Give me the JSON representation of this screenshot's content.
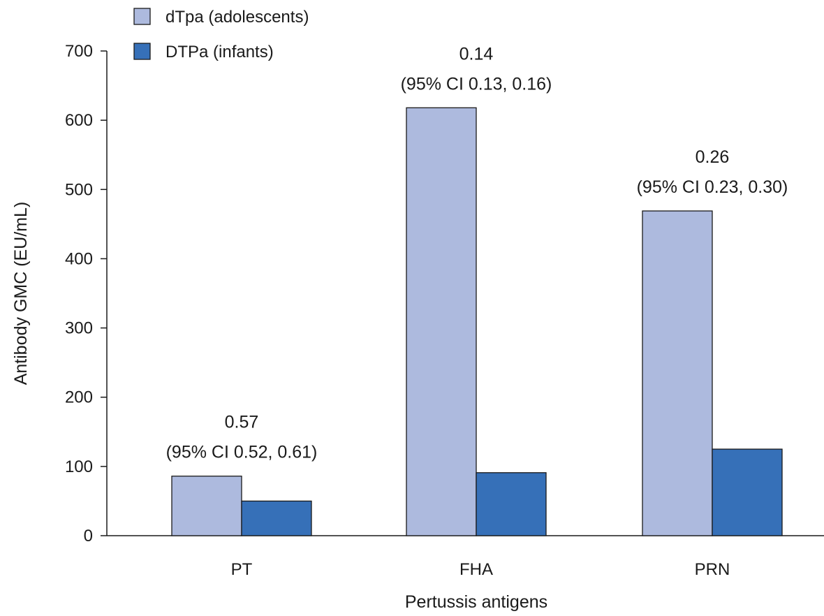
{
  "chart_data": {
    "type": "bar",
    "title": "",
    "xlabel": "Pertussis antigens",
    "ylabel": "Antibody GMC (EU/mL)",
    "ylim": [
      0,
      700
    ],
    "yticks": [
      0,
      100,
      200,
      300,
      400,
      500,
      600,
      700
    ],
    "categories": [
      "PT",
      "FHA",
      "PRN"
    ],
    "series": [
      {
        "name": "dTpa (adolescents)",
        "values": [
          86,
          618,
          469
        ],
        "color": "#adbade"
      },
      {
        "name": "DTPa (infants)",
        "values": [
          50,
          91,
          125
        ],
        "color": "#3670b8"
      }
    ],
    "annotations": [
      {
        "category": "PT",
        "line1": "0.57",
        "line2": "(95% CI 0.52, 0.61)"
      },
      {
        "category": "FHA",
        "line1": "0.14",
        "line2": "(95% CI 0.13, 0.16)"
      },
      {
        "category": "PRN",
        "line1": "0.26",
        "line2": "(95% CI 0.23, 0.30)"
      }
    ],
    "legend_position": "top-left",
    "grid": false
  }
}
